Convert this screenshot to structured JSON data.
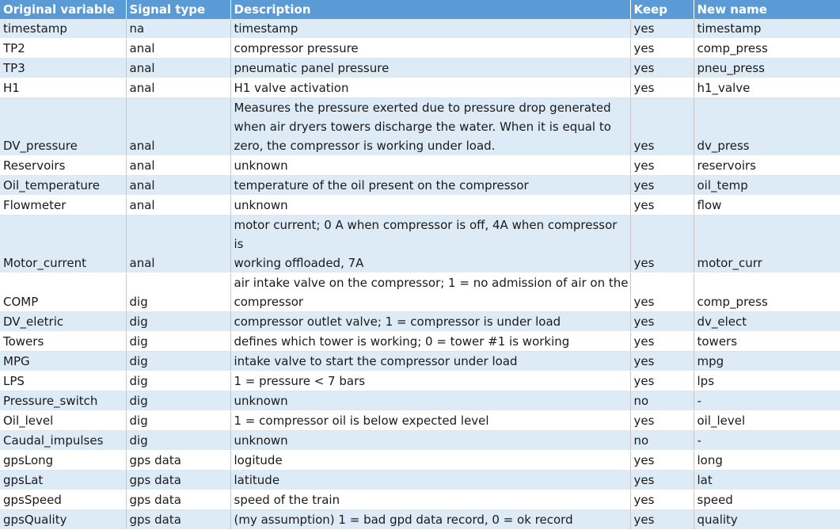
{
  "headers": [
    "Original variable",
    "Signal type",
    "Description",
    "Keep",
    "New name"
  ],
  "rows": [
    {
      "var": "timestamp",
      "type": "na",
      "desc": [
        "timestamp"
      ],
      "keep": "yes",
      "new": "timestamp"
    },
    {
      "var": "TP2",
      "type": "anal",
      "desc": [
        "compressor pressure"
      ],
      "keep": "yes",
      "new": "comp_press"
    },
    {
      "var": "TP3",
      "type": "anal",
      "desc": [
        "pneumatic panel pressure"
      ],
      "keep": "yes",
      "new": "pneu_press"
    },
    {
      "var": "H1",
      "type": "anal",
      "desc": [
        "H1 valve activation"
      ],
      "keep": "yes",
      "new": "h1_valve"
    },
    {
      "var": "DV_pressure",
      "type": "anal",
      "desc": [
        "Measures the pressure exerted due to pressure drop generated",
        "when air dryers towers discharge the water. When it is equal to",
        "zero, the compressor is working under load."
      ],
      "keep": "yes",
      "new": "dv_press"
    },
    {
      "var": "Reservoirs",
      "type": "anal",
      "desc": [
        "unknown"
      ],
      "keep": "yes",
      "new": "reservoirs"
    },
    {
      "var": "Oil_temperature",
      "type": "anal",
      "desc": [
        "temperature of the oil present on the compressor"
      ],
      "keep": "yes",
      "new": "oil_temp"
    },
    {
      "var": "Flowmeter",
      "type": "anal",
      "desc": [
        "unknown"
      ],
      "keep": "yes",
      "new": "flow"
    },
    {
      "var": "Motor_current",
      "type": "anal",
      "desc": [
        "motor current; 0 A when compressor is off, 4A when compressor is",
        "working offloaded, 7A"
      ],
      "keep": "yes",
      "new": "motor_curr"
    },
    {
      "var": "COMP",
      "type": "dig",
      "desc": [
        "air intake valve on the compressor; 1 = no admission of air on the",
        "compressor"
      ],
      "keep": "yes",
      "new": "comp_press"
    },
    {
      "var": "DV_eletric",
      "type": "dig",
      "desc": [
        "compressor outlet valve; 1 = compressor is under load"
      ],
      "keep": "yes",
      "new": "dv_elect"
    },
    {
      "var": "Towers",
      "type": "dig",
      "desc": [
        "defines which tower is working; 0 = tower #1 is working"
      ],
      "keep": "yes",
      "new": "towers"
    },
    {
      "var": "MPG",
      "type": "dig",
      "desc": [
        "intake valve to start the compressor under load"
      ],
      "keep": "yes",
      "new": "mpg"
    },
    {
      "var": "LPS",
      "type": "dig",
      "desc": [
        "1 = pressure < 7 bars"
      ],
      "keep": "yes",
      "new": "lps"
    },
    {
      "var": "Pressure_switch",
      "type": "dig",
      "desc": [
        "unknown"
      ],
      "keep": "no",
      "new": "-"
    },
    {
      "var": "Oil_level",
      "type": "dig",
      "desc": [
        "1 = compressor oil is below expected level"
      ],
      "keep": "yes",
      "new": "oil_level"
    },
    {
      "var": "Caudal_impulses",
      "type": "dig",
      "desc": [
        "unknown"
      ],
      "keep": "no",
      "new": "-"
    },
    {
      "var": "gpsLong",
      "type": "gps data",
      "desc": [
        "logitude"
      ],
      "keep": "yes",
      "new": "long"
    },
    {
      "var": "gpsLat",
      "type": "gps data",
      "desc": [
        "latitude"
      ],
      "keep": "yes",
      "new": "lat"
    },
    {
      "var": "gpsSpeed",
      "type": "gps data",
      "desc": [
        "speed of the train"
      ],
      "keep": "yes",
      "new": "speed"
    },
    {
      "var": "gpsQuality",
      "type": "gps data",
      "desc": [
        "(my assumption) 1 = bad gpd data record, 0 = ok record"
      ],
      "keep": "yes",
      "new": "quality"
    }
  ],
  "colors": {
    "header_bg": "#5b9bd5",
    "band_bg": "#ddebf7",
    "text": "#1a1a1a"
  }
}
